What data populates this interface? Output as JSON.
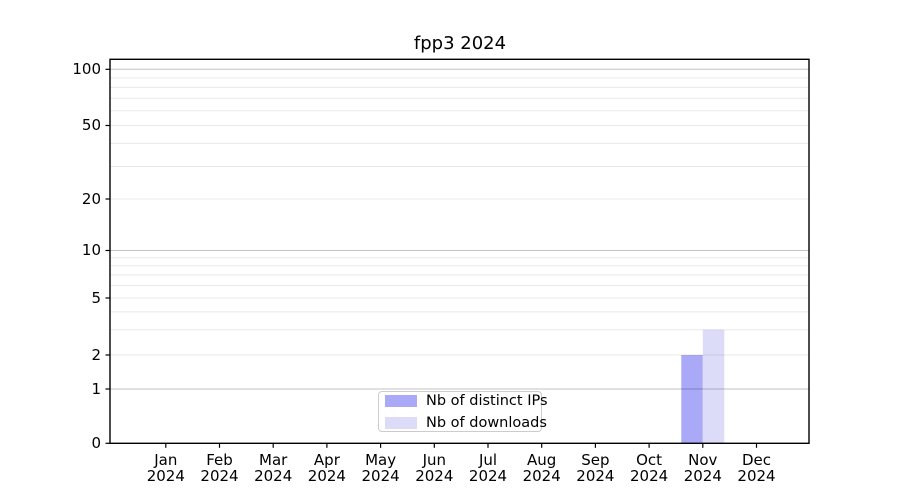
{
  "chart_data": {
    "type": "bar",
    "title": "fpp3 2024",
    "x_months": [
      "Jan",
      "Feb",
      "Mar",
      "Apr",
      "May",
      "Jun",
      "Jul",
      "Aug",
      "Sep",
      "Oct",
      "Nov",
      "Dec"
    ],
    "x_year": "2024",
    "series": [
      {
        "name": "Nb of distinct IPs",
        "color": "#a9a9f7",
        "values": [
          0,
          0,
          0,
          0,
          0,
          0,
          0,
          0,
          0,
          0,
          2,
          0
        ]
      },
      {
        "name": "Nb of downloads",
        "color": "#dcdcf8",
        "values": [
          0,
          0,
          0,
          0,
          0,
          0,
          0,
          0,
          0,
          0,
          3,
          0
        ]
      }
    ],
    "y_ticks": [
      0,
      1,
      2,
      5,
      10,
      20,
      50,
      100
    ],
    "y_minor_gridlines": [
      3,
      4,
      6,
      7,
      8,
      9,
      30,
      40,
      60,
      70,
      80,
      90
    ],
    "y_major_gridlines": [
      1,
      10,
      100
    ],
    "scale": "asinh-log",
    "ylim": [
      0,
      115
    ],
    "grid": true,
    "legend_position": "lower center"
  },
  "colors": {
    "background": "#ffffff",
    "spine": "#000000",
    "major_grid": "rgba(0,0,0,0.24)",
    "minor_grid": "rgba(0,0,0,0.09)",
    "legend_border": "#cccccc"
  }
}
